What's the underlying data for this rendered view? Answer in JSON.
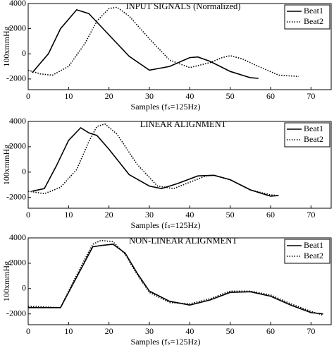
{
  "chart_data": [
    {
      "type": "line",
      "title": "INPUT SIGNALS (Normalized)",
      "ylabel": "100xmmHg",
      "xlabel": "Samples (fₛ=125Hz)",
      "xlim": [
        0,
        75
      ],
      "ylim": [
        -2850,
        4000
      ],
      "xticks": [
        0,
        10,
        20,
        30,
        40,
        50,
        60,
        70
      ],
      "yticks": [
        -2000,
        0,
        2000,
        4000
      ],
      "legend": "upper right",
      "series": [
        {
          "name": "Beat1",
          "color": "#000000",
          "style": "solid",
          "x": [
            1,
            5,
            8,
            12,
            15,
            20,
            25,
            30,
            35,
            40,
            42,
            45,
            50,
            55,
            57
          ],
          "values": [
            -1500,
            0,
            2000,
            3500,
            3200,
            1500,
            -200,
            -1300,
            -1000,
            -300,
            -250,
            -600,
            -1400,
            -1900,
            -1950
          ]
        },
        {
          "name": "Beat2",
          "color": "#000000",
          "style": "dotted",
          "x": [
            0,
            3,
            6,
            10,
            14,
            17,
            20,
            22,
            25,
            30,
            35,
            40,
            45,
            48,
            50,
            53,
            57,
            62,
            67
          ],
          "values": [
            -1300,
            -1600,
            -1700,
            -1000,
            800,
            2600,
            3600,
            3700,
            3000,
            1200,
            -500,
            -1100,
            -700,
            -300,
            -150,
            -400,
            -1000,
            -1700,
            -1800
          ]
        }
      ]
    },
    {
      "type": "line",
      "title": "LINEAR ALIGNMENT",
      "ylabel": "100xmmHg",
      "xlabel": "Samples (fₛ=125Hz)",
      "xlim": [
        0,
        75
      ],
      "ylim": [
        -2850,
        4000
      ],
      "xticks": [
        0,
        10,
        20,
        30,
        40,
        50,
        60,
        70
      ],
      "yticks": [
        -2000,
        0,
        2000,
        4000
      ],
      "legend": "upper right",
      "series": [
        {
          "name": "Beat1",
          "color": "#000000",
          "style": "solid",
          "x": [
            1,
            4,
            7,
            10,
            13,
            15,
            17,
            20,
            25,
            30,
            33,
            37,
            42,
            46,
            50,
            55,
            60,
            62
          ],
          "values": [
            -1500,
            -1300,
            500,
            2500,
            3500,
            3100,
            2900,
            1800,
            -200,
            -1100,
            -1300,
            -900,
            -300,
            -250,
            -600,
            -1400,
            -1900,
            -1850
          ]
        },
        {
          "name": "Beat2",
          "color": "#000000",
          "style": "dotted",
          "x": [
            0,
            4,
            8,
            12,
            15,
            17,
            19,
            22,
            27,
            32,
            36,
            40,
            44,
            46,
            50,
            55,
            60,
            62
          ],
          "values": [
            -1500,
            -1700,
            -1200,
            200,
            2400,
            3600,
            3800,
            3000,
            600,
            -1100,
            -1300,
            -800,
            -300,
            -250,
            -600,
            -1400,
            -1800,
            -1850
          ]
        }
      ]
    },
    {
      "type": "line",
      "title": "NON-LINEAR ALIGNMENT",
      "ylabel": "100xmmHg",
      "xlabel": "Samples (fₛ=125Hz)",
      "xlim": [
        0,
        75
      ],
      "ylim": [
        -2850,
        4000
      ],
      "xticks": [
        0,
        10,
        20,
        30,
        40,
        50,
        60,
        70
      ],
      "yticks": [
        -2000,
        0,
        2000,
        4000
      ],
      "legend": "upper right",
      "series": [
        {
          "name": "Beat1",
          "color": "#000000",
          "style": "solid",
          "x": [
            0,
            8,
            10,
            13,
            16,
            18,
            21,
            24,
            27,
            30,
            35,
            40,
            45,
            50,
            55,
            60,
            65,
            70,
            73
          ],
          "values": [
            -1500,
            -1500,
            -300,
            1500,
            3300,
            3400,
            3500,
            2800,
            1200,
            -200,
            -1000,
            -1300,
            -900,
            -300,
            -250,
            -600,
            -1300,
            -1900,
            -2000
          ]
        },
        {
          "name": "Beat2",
          "color": "#000000",
          "style": "dotted",
          "x": [
            0,
            8,
            10,
            13,
            16,
            18,
            21,
            24,
            27,
            30,
            35,
            40,
            45,
            50,
            55,
            60,
            65,
            70,
            73
          ],
          "values": [
            -1400,
            -1500,
            -200,
            1700,
            3500,
            3800,
            3700,
            2700,
            1100,
            -300,
            -1100,
            -1200,
            -800,
            -200,
            -200,
            -500,
            -1200,
            -1800,
            -2100
          ]
        }
      ]
    }
  ]
}
